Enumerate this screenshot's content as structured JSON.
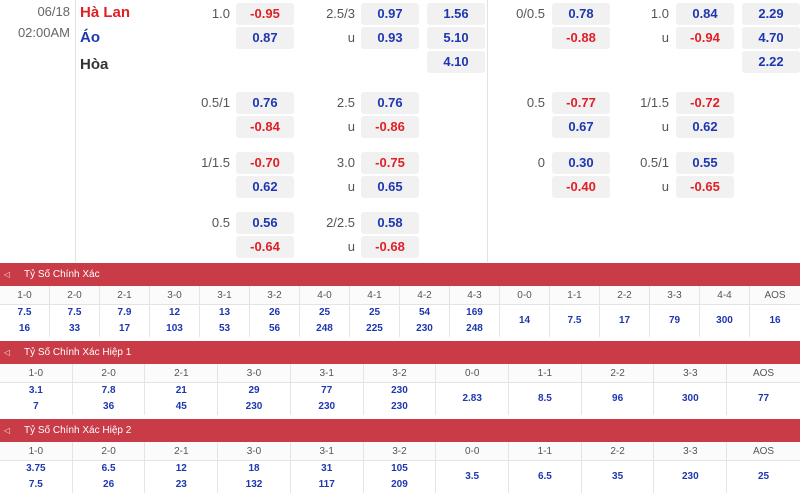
{
  "match": {
    "date": "06/18",
    "time": "02:00AM",
    "home": "Hà Lan",
    "away": "Áo",
    "draw": "Hòa"
  },
  "odds_left": {
    "rows": [
      {
        "hcap_label": "1.0",
        "hcap_home": "-0.95",
        "hcap_away": "0.87",
        "ou_label": "2.5/3",
        "ou_under": "u",
        "ou_over_odd": "0.97",
        "ou_under_odd": "0.93"
      },
      {
        "hcap_label": "0.5/1",
        "hcap_home": "0.76",
        "hcap_away": "-0.84",
        "ou_label": "2.5",
        "ou_under": "u",
        "ou_over_odd": "0.76",
        "ou_under_odd": "-0.86"
      },
      {
        "hcap_label": "1/1.5",
        "hcap_home": "-0.70",
        "hcap_away": "0.62",
        "ou_label": "3.0",
        "ou_under": "u",
        "ou_over_odd": "-0.75",
        "ou_under_odd": "0.65"
      },
      {
        "hcap_label": "0.5",
        "hcap_home": "0.56",
        "hcap_away": "-0.64",
        "ou_label": "2/2.5",
        "ou_under": "u",
        "ou_over_odd": "0.58",
        "ou_under_odd": "-0.68"
      }
    ],
    "x12": [
      "1.56",
      "5.10",
      "4.10"
    ]
  },
  "odds_right": {
    "rows": [
      {
        "hcap_label": "0/0.5",
        "hcap_home": "0.78",
        "hcap_away": "-0.88",
        "ou_label": "1.0",
        "ou_under": "u",
        "ou_over_odd": "0.84",
        "ou_under_odd": "-0.94"
      },
      {
        "hcap_label": "0.5",
        "hcap_home": "-0.77",
        "hcap_away": "0.67",
        "ou_label": "1/1.5",
        "ou_under": "u",
        "ou_over_odd": "-0.72",
        "ou_under_odd": "0.62"
      },
      {
        "hcap_label": "0",
        "hcap_home": "0.30",
        "hcap_away": "-0.40",
        "ou_label": "0.5/1",
        "ou_under": "u",
        "ou_over_odd": "0.55",
        "ou_under_odd": "-0.65"
      }
    ],
    "x12": [
      "2.29",
      "4.70",
      "2.22"
    ]
  },
  "sections": [
    {
      "title": "Tỷ Số Chính Xác",
      "toggle": "◁",
      "columns": [
        {
          "h": "1-0",
          "v": [
            "7.5",
            "16"
          ]
        },
        {
          "h": "2-0",
          "v": [
            "7.5",
            "33"
          ]
        },
        {
          "h": "2-1",
          "v": [
            "7.9",
            "17"
          ]
        },
        {
          "h": "3-0",
          "v": [
            "12",
            "103"
          ]
        },
        {
          "h": "3-1",
          "v": [
            "13",
            "53"
          ]
        },
        {
          "h": "3-2",
          "v": [
            "26",
            "56"
          ]
        },
        {
          "h": "4-0",
          "v": [
            "25",
            "248"
          ]
        },
        {
          "h": "4-1",
          "v": [
            "25",
            "225"
          ]
        },
        {
          "h": "4-2",
          "v": [
            "54",
            "230"
          ]
        },
        {
          "h": "4-3",
          "v": [
            "169",
            "248"
          ]
        },
        {
          "h": "0-0",
          "v": [
            "14"
          ]
        },
        {
          "h": "1-1",
          "v": [
            "7.5"
          ]
        },
        {
          "h": "2-2",
          "v": [
            "17"
          ]
        },
        {
          "h": "3-3",
          "v": [
            "79"
          ]
        },
        {
          "h": "4-4",
          "v": [
            "300"
          ]
        },
        {
          "h": "AOS",
          "v": [
            "16"
          ]
        }
      ]
    },
    {
      "title": "Tỷ Số Chính Xác Hiệp 1",
      "toggle": "◁",
      "columns": [
        {
          "h": "1-0",
          "v": [
            "3.1",
            "7"
          ]
        },
        {
          "h": "2-0",
          "v": [
            "7.8",
            "36"
          ]
        },
        {
          "h": "2-1",
          "v": [
            "21",
            "45"
          ]
        },
        {
          "h": "3-0",
          "v": [
            "29",
            "230"
          ]
        },
        {
          "h": "3-1",
          "v": [
            "77",
            "230"
          ]
        },
        {
          "h": "3-2",
          "v": [
            "230",
            "230"
          ]
        },
        {
          "h": "0-0",
          "v": [
            "2.83"
          ]
        },
        {
          "h": "1-1",
          "v": [
            "8.5"
          ]
        },
        {
          "h": "2-2",
          "v": [
            "96"
          ]
        },
        {
          "h": "3-3",
          "v": [
            "300"
          ]
        },
        {
          "h": "AOS",
          "v": [
            "77"
          ]
        }
      ]
    },
    {
      "title": "Tỷ Số Chính Xác Hiệp 2",
      "toggle": "◁",
      "columns": [
        {
          "h": "1-0",
          "v": [
            "3.75",
            "7.5"
          ]
        },
        {
          "h": "2-0",
          "v": [
            "6.5",
            "26"
          ]
        },
        {
          "h": "2-1",
          "v": [
            "12",
            "23"
          ]
        },
        {
          "h": "3-0",
          "v": [
            "18",
            "132"
          ]
        },
        {
          "h": "3-1",
          "v": [
            "31",
            "117"
          ]
        },
        {
          "h": "3-2",
          "v": [
            "105",
            "209"
          ]
        },
        {
          "h": "0-0",
          "v": [
            "3.5"
          ]
        },
        {
          "h": "1-1",
          "v": [
            "6.5"
          ]
        },
        {
          "h": "2-2",
          "v": [
            "35"
          ]
        },
        {
          "h": "3-3",
          "v": [
            "230"
          ]
        },
        {
          "h": "AOS",
          "v": [
            "25"
          ]
        }
      ]
    }
  ]
}
